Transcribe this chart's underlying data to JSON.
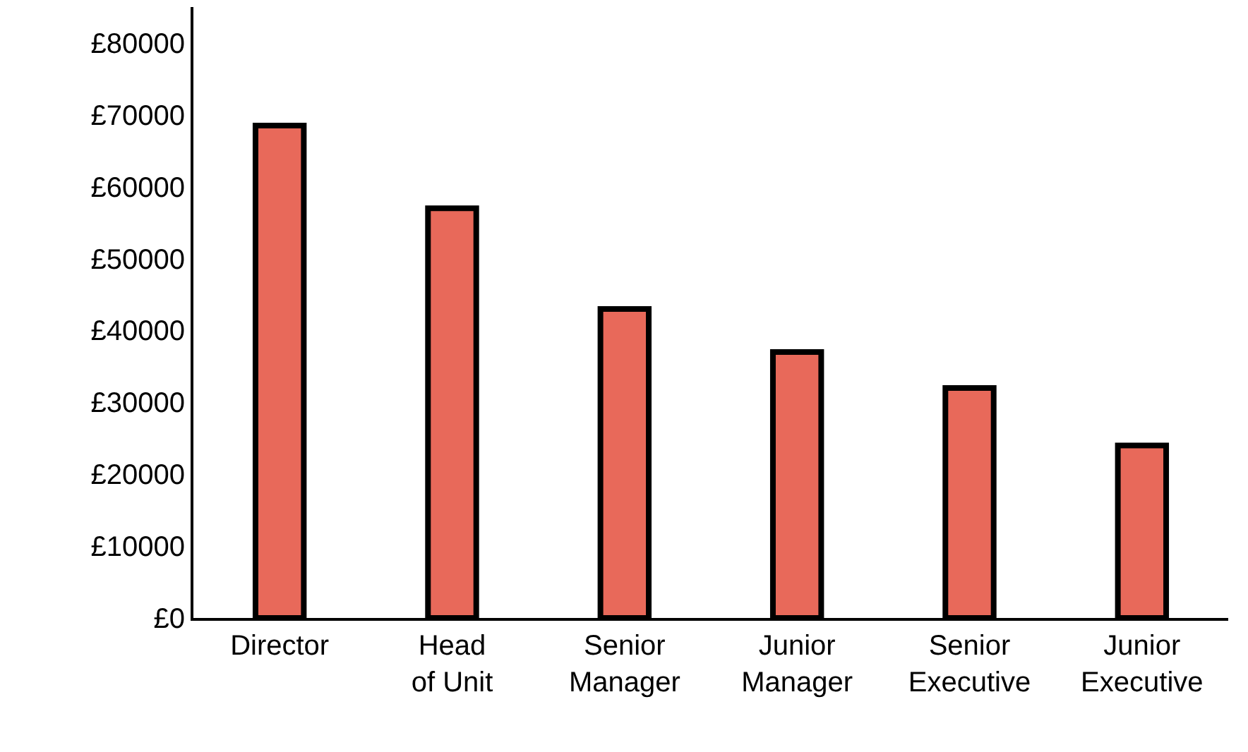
{
  "chart_data": {
    "type": "bar",
    "categories": [
      "Director",
      "Head\nof Unit",
      "Senior\nManager",
      "Junior\nManager",
      "Senior\nExecutive",
      "Junior\nExecutive"
    ],
    "values": [
      68500,
      57000,
      43000,
      37000,
      32000,
      24000
    ],
    "color": "#e8695a",
    "ylim": [
      0,
      85000
    ],
    "yticks": [
      {
        "value": 0,
        "label": "£0"
      },
      {
        "value": 10000,
        "label": "£10000"
      },
      {
        "value": 20000,
        "label": "£20000"
      },
      {
        "value": 30000,
        "label": "£30000"
      },
      {
        "value": 40000,
        "label": "£40000"
      },
      {
        "value": 50000,
        "label": "£50000"
      },
      {
        "value": 60000,
        "label": "£60000"
      },
      {
        "value": 70000,
        "label": "£70000"
      },
      {
        "value": 80000,
        "label": "£80000"
      }
    ],
    "grid": false
  }
}
